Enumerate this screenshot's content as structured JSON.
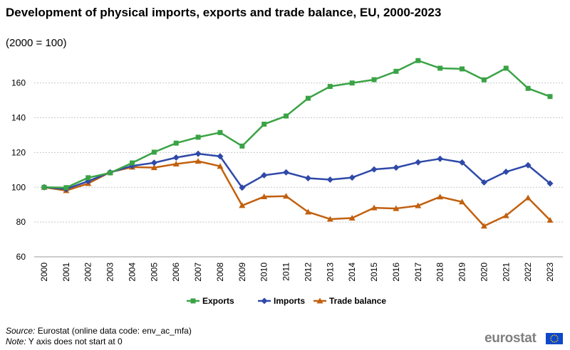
{
  "header": {
    "title": "Development of physical imports, exports and trade balance, EU, 2000-2023",
    "subtitle": "(2000 = 100)"
  },
  "footer": {
    "source_label": "Source:",
    "source_text": " Eurostat (online data code: env_ac_mfa)",
    "note_label": "Note:",
    "note_text": " Y axis does not start at 0",
    "logo_text": "eurostat",
    "flag_icon": "eu-flag-icon"
  },
  "colors": {
    "exports": "#3aa345",
    "imports": "#2f49a8",
    "trade_balance": "#c2600f",
    "grid": "#c8c8c8",
    "axis": "#999999"
  },
  "chart_data": {
    "type": "line",
    "title": "Development of physical imports, exports and trade balance, EU, 2000-2023",
    "subtitle": "(2000 = 100)",
    "xlabel": "",
    "ylabel": "",
    "ylim": [
      60,
      175
    ],
    "yticks": [
      60,
      80,
      100,
      120,
      140,
      160
    ],
    "grid": true,
    "legend_position": "bottom",
    "categories": [
      "2000",
      "2001",
      "2002",
      "2003",
      "2004",
      "2005",
      "2006",
      "2007",
      "2008",
      "2009",
      "2010",
      "2011",
      "2012",
      "2013",
      "2014",
      "2015",
      "2016",
      "2017",
      "2018",
      "2019",
      "2020",
      "2021",
      "2022",
      "2023"
    ],
    "series": [
      {
        "name": "Exports",
        "marker": "square",
        "color": "#3aa345",
        "values": [
          100,
          99.8,
          105.5,
          108.3,
          114.0,
          120.2,
          125.4,
          128.8,
          131.5,
          123.7,
          136.3,
          141.0,
          151.2,
          158.0,
          160.0,
          161.9,
          166.7,
          172.9,
          168.5,
          168.1,
          161.8,
          168.5,
          156.9,
          152.2
        ]
      },
      {
        "name": "Imports",
        "marker": "diamond",
        "color": "#2f49a8",
        "values": [
          100,
          99.0,
          103.5,
          108.6,
          112.3,
          114.1,
          117.1,
          119.3,
          117.8,
          99.8,
          106.9,
          108.6,
          105.2,
          104.4,
          105.6,
          110.3,
          111.3,
          114.4,
          116.4,
          114.3,
          102.8,
          108.9,
          112.7,
          102.2
        ]
      },
      {
        "name": "Trade balance",
        "marker": "triangle",
        "color": "#c2600f",
        "values": [
          100,
          98.1,
          102.2,
          108.7,
          111.6,
          111.3,
          113.4,
          115.0,
          112.1,
          89.5,
          94.6,
          94.9,
          85.8,
          81.7,
          82.3,
          88.2,
          87.8,
          89.4,
          94.5,
          91.6,
          77.7,
          83.7,
          93.9,
          81.1
        ]
      }
    ]
  }
}
